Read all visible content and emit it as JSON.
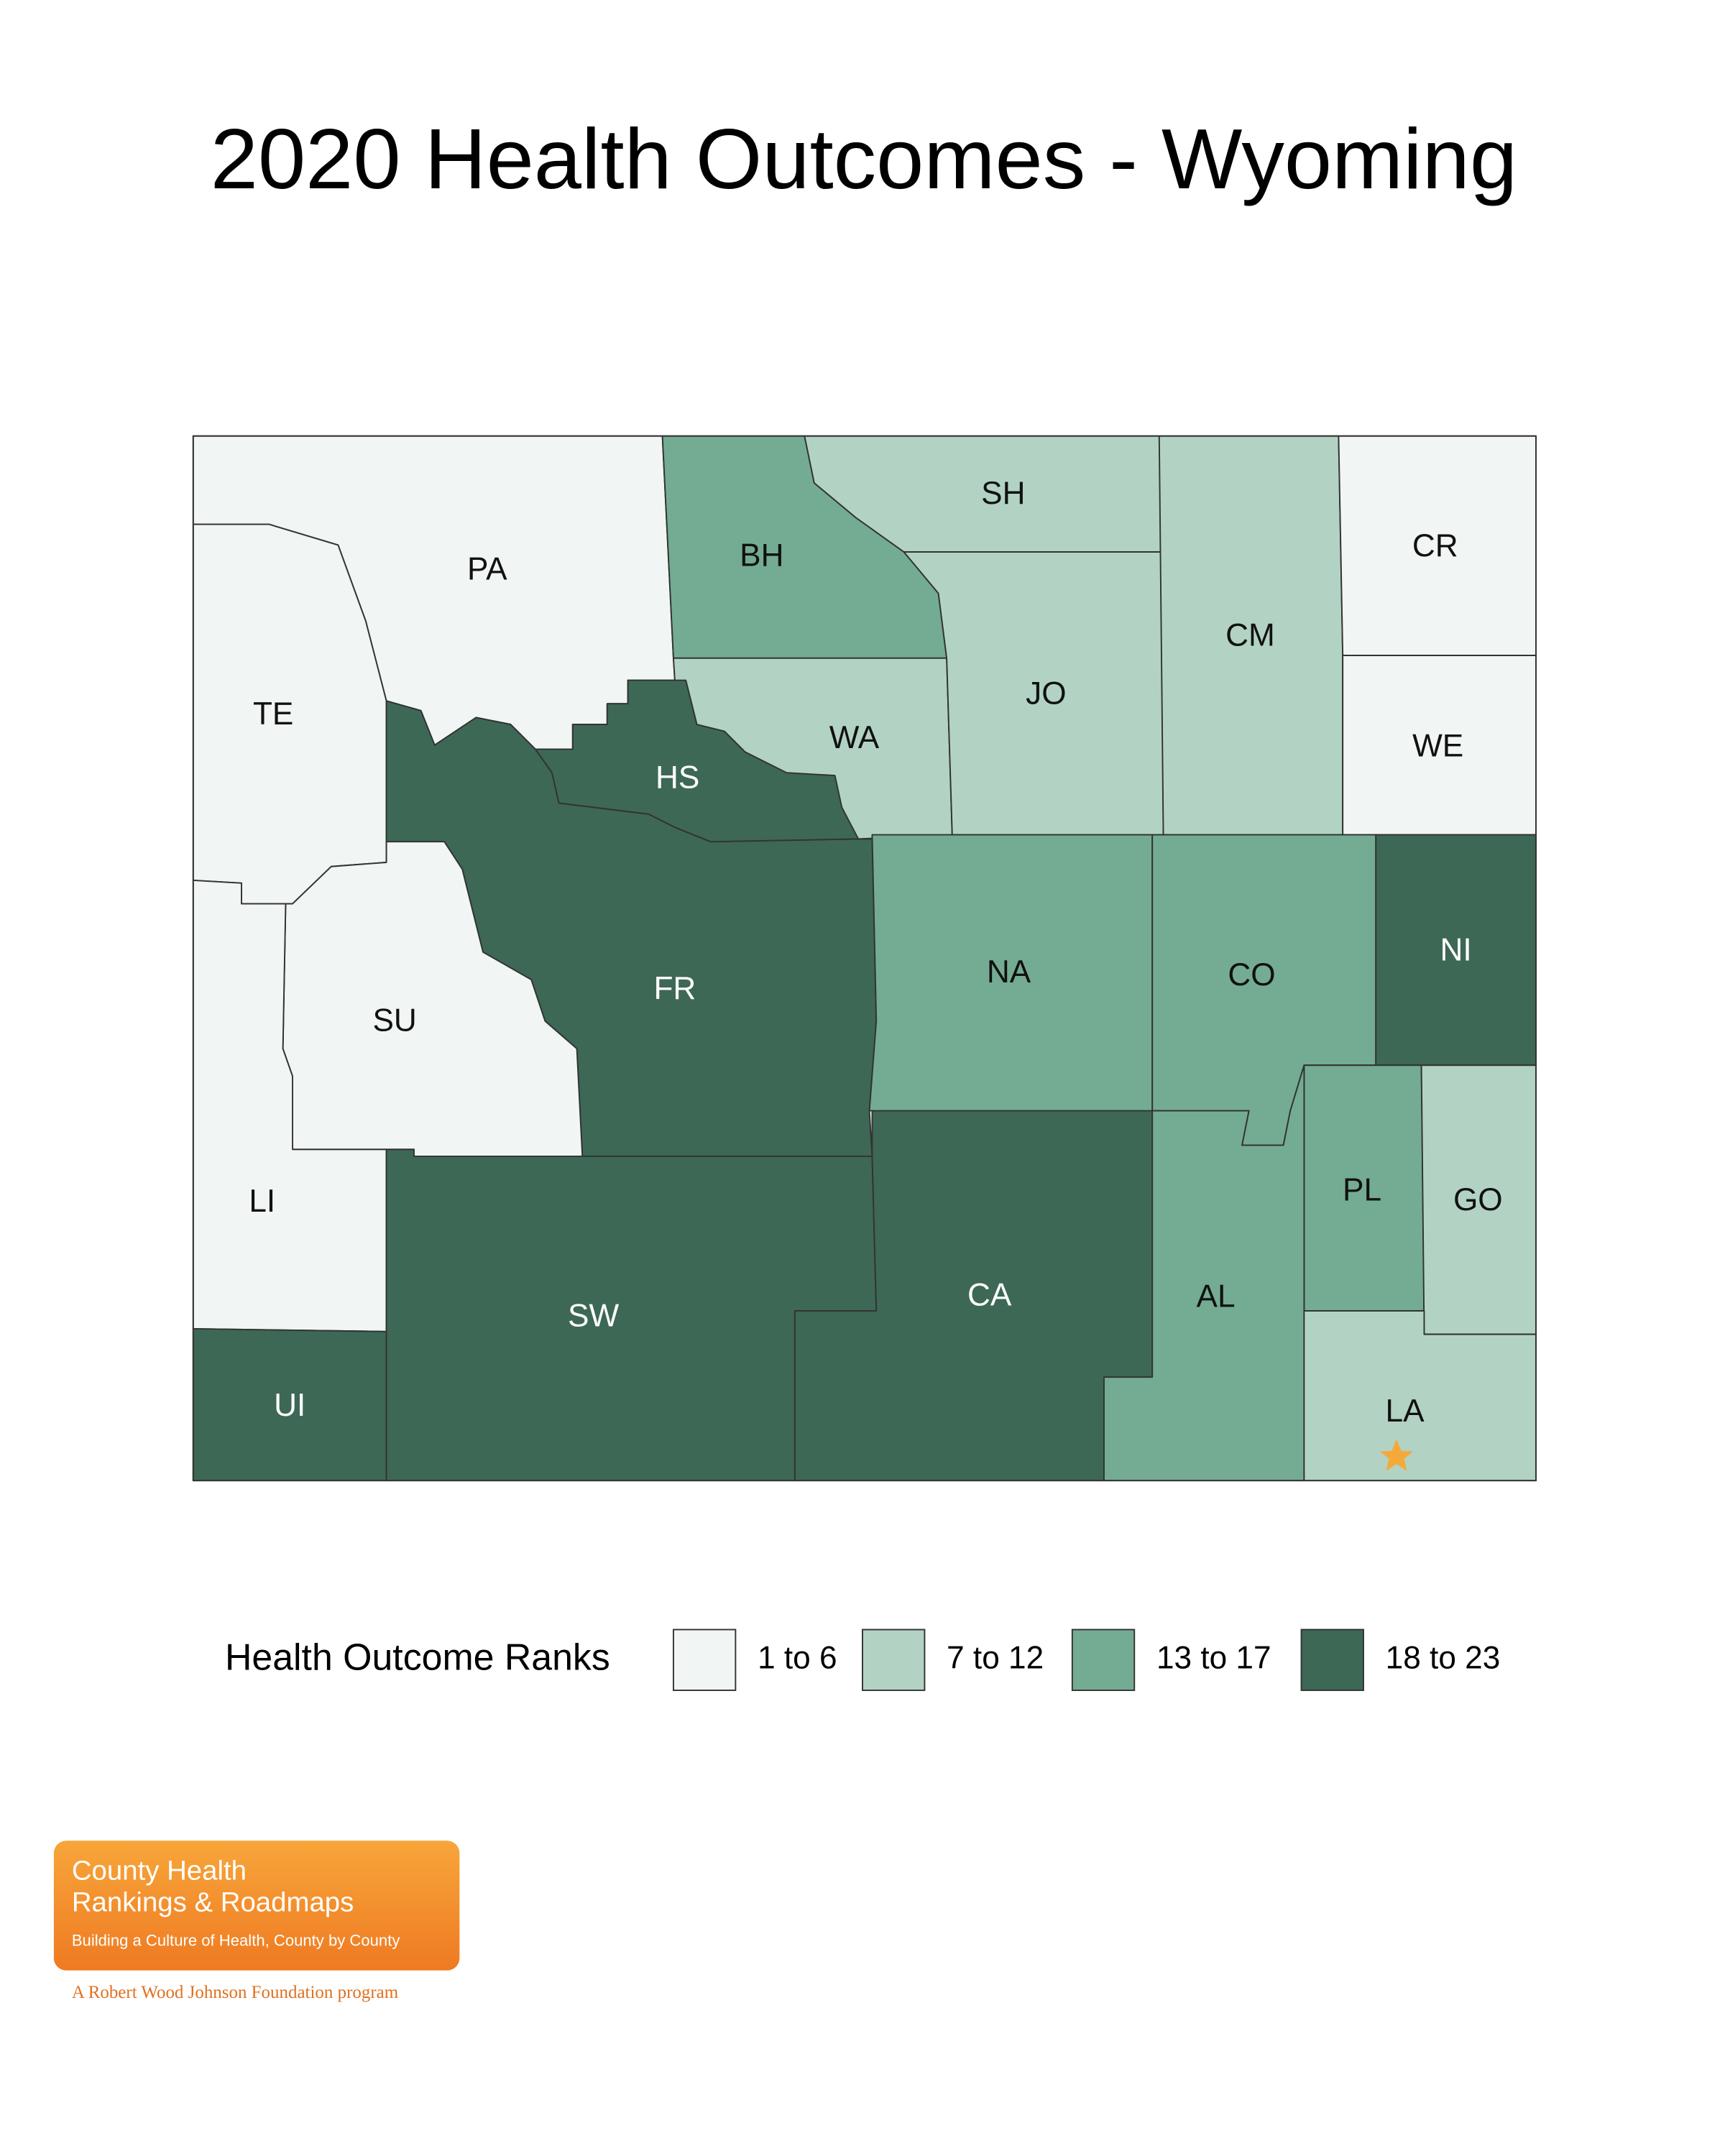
{
  "title": "2020 Health Outcomes - Wyoming",
  "counties": [
    {
      "label": "PA",
      "color": "#f1f5f3"
    },
    {
      "label": "TE",
      "color": "#f1f5f3"
    },
    {
      "label": "HS",
      "color": "#3d6855"
    },
    {
      "label": "FR",
      "color": "#3d6855"
    },
    {
      "label": "SU",
      "color": "#f1f5f3"
    },
    {
      "label": "LI",
      "color": "#f1f5f3"
    },
    {
      "label": "UI",
      "color": "#3d6855"
    },
    {
      "label": "SW",
      "color": "#3d6855"
    },
    {
      "label": "CA",
      "color": "#3d6855"
    },
    {
      "label": "BH",
      "color": "#73ac92"
    },
    {
      "label": "SH",
      "color": "#b2d3c3"
    },
    {
      "label": "WA",
      "color": "#b2d3c3"
    },
    {
      "label": "JO",
      "color": "#b2d3c3"
    },
    {
      "label": "CM",
      "color": "#b2d3c3"
    },
    {
      "label": "CR",
      "color": "#f1f5f3"
    },
    {
      "label": "WE",
      "color": "#f1f5f3"
    },
    {
      "label": "NA",
      "color": "#73ac92"
    },
    {
      "label": "CO",
      "color": "#73ac92"
    },
    {
      "label": "NI",
      "color": "#3d6855"
    },
    {
      "label": "PL",
      "color": "#73ac92"
    },
    {
      "label": "GO",
      "color": "#b2d3c3"
    },
    {
      "label": "AL",
      "color": "#73ac92"
    },
    {
      "label": "LA",
      "color": "#b2d3c3"
    }
  ],
  "legend": {
    "title": "Health Outcome Ranks",
    "items": [
      {
        "label": "1 to 6",
        "color": "#f1f5f3"
      },
      {
        "label": "7 to 12",
        "color": "#b2d3c3"
      },
      {
        "label": "13 to 17",
        "color": "#73ac92"
      },
      {
        "label": "18 to 23",
        "color": "#3d6855"
      }
    ]
  },
  "logo": {
    "line1": "County Health",
    "line2": "Rankings & Roadmaps",
    "tagline": "Building a Culture of Health, County by County",
    "footer": "A Robert Wood Johnson Foundation program"
  }
}
